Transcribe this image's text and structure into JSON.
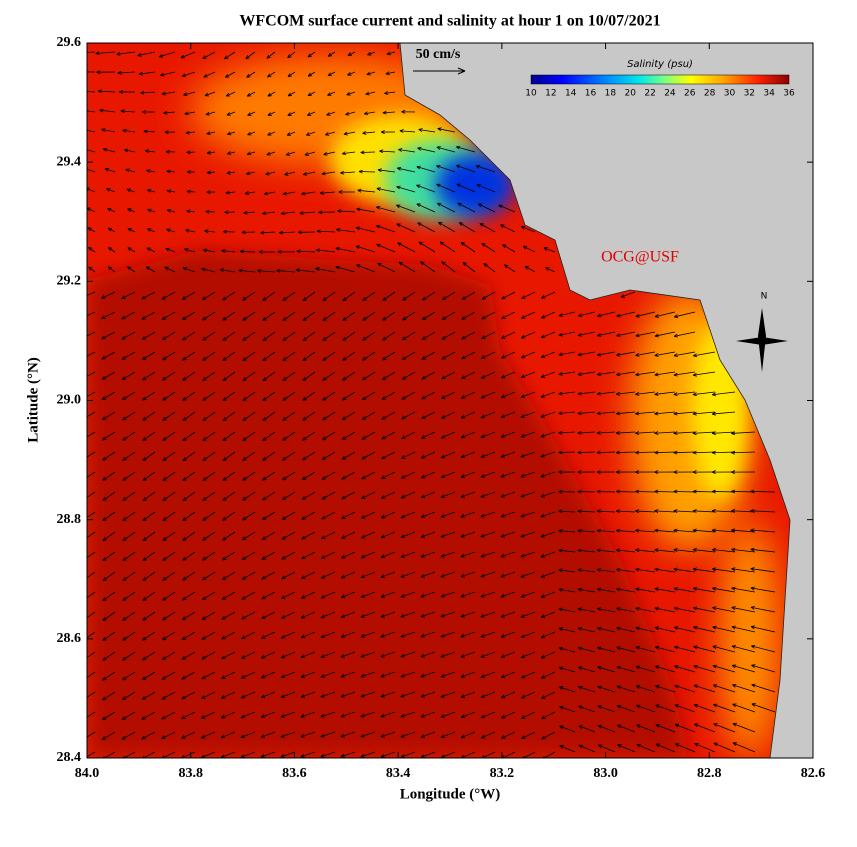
{
  "title": "WFCOM surface current and salinity at hour 1 on 10/07/2021",
  "x_label": "Longitude (°W)",
  "y_label": "Latitude (°N)",
  "xlim": [
    84,
    82.6
  ],
  "ylim": [
    28.4,
    29.6
  ],
  "xticks": [
    {
      "value": 84,
      "label": "84.0"
    },
    83.8,
    83.6,
    83.4,
    83.2,
    {
      "value": 83,
      "label": "83.0"
    },
    82.8,
    82.6
  ],
  "yticks": [
    28.4,
    28.6,
    28.8,
    {
      "value": 29,
      "label": "29.0"
    },
    29.2,
    29.4,
    29.6
  ],
  "scale_label": "50 cm/s",
  "credit": "OCG@USF",
  "compass_label": "N",
  "colorbar": {
    "title": "Salinity (psu)",
    "range": [
      10,
      36
    ],
    "ticks": [
      10,
      12,
      14,
      16,
      18,
      20,
      22,
      24,
      26,
      28,
      30,
      32,
      34,
      36
    ]
  }
}
